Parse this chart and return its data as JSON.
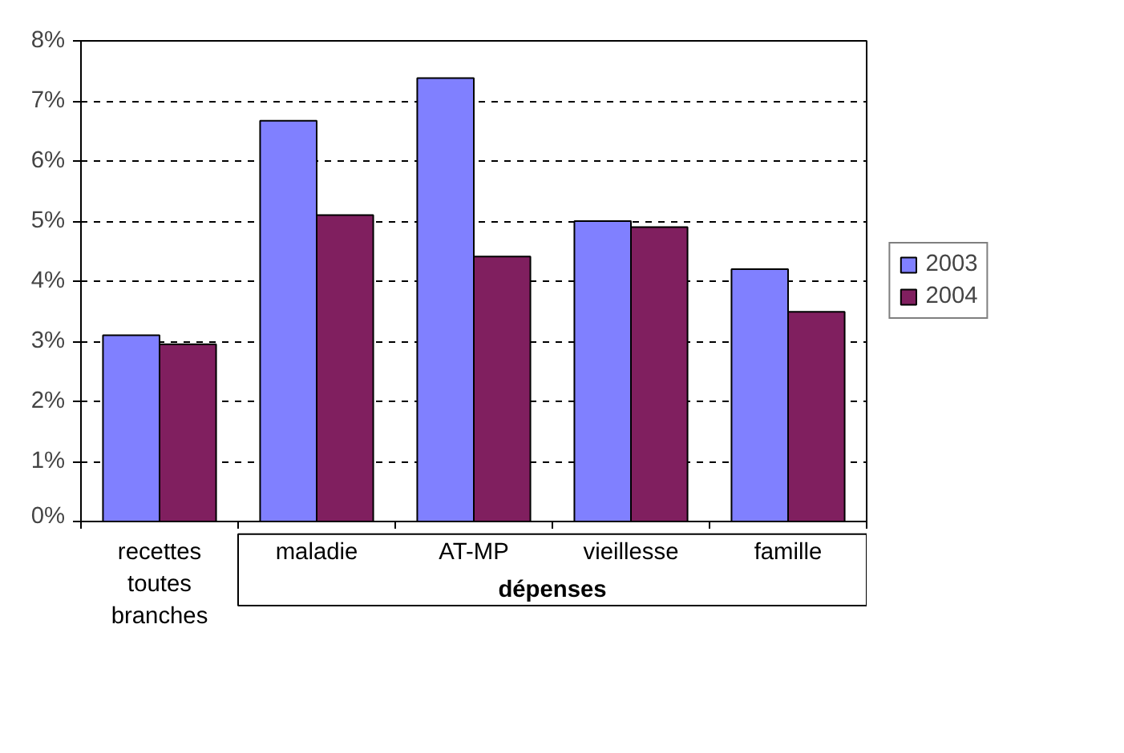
{
  "chart_data": {
    "type": "bar",
    "categories": [
      "recettes\ntoutes\nbranches",
      "maladie",
      "AT-MP",
      "vieillesse",
      "famille"
    ],
    "series": [
      {
        "name": "2003",
        "color": "#8080ff",
        "values": [
          3.1,
          6.67,
          7.38,
          5.0,
          4.2
        ]
      },
      {
        "name": "2004",
        "color": "#801f5f",
        "values": [
          2.95,
          5.1,
          4.41,
          4.9,
          3.49
        ]
      }
    ],
    "ylim": [
      0,
      8
    ],
    "yticks": [
      {
        "value": 0,
        "label": "0%"
      },
      {
        "value": 1,
        "label": "1%"
      },
      {
        "value": 2,
        "label": "2%"
      },
      {
        "value": 3,
        "label": "3%"
      },
      {
        "value": 4,
        "label": "4%"
      },
      {
        "value": 5,
        "label": "5%"
      },
      {
        "value": 6,
        "label": "6%"
      },
      {
        "value": 7,
        "label": "7%"
      },
      {
        "value": 8,
        "label": "8%"
      }
    ],
    "grid": "y",
    "legend": "right",
    "annotations": [
      "dépenses"
    ]
  }
}
